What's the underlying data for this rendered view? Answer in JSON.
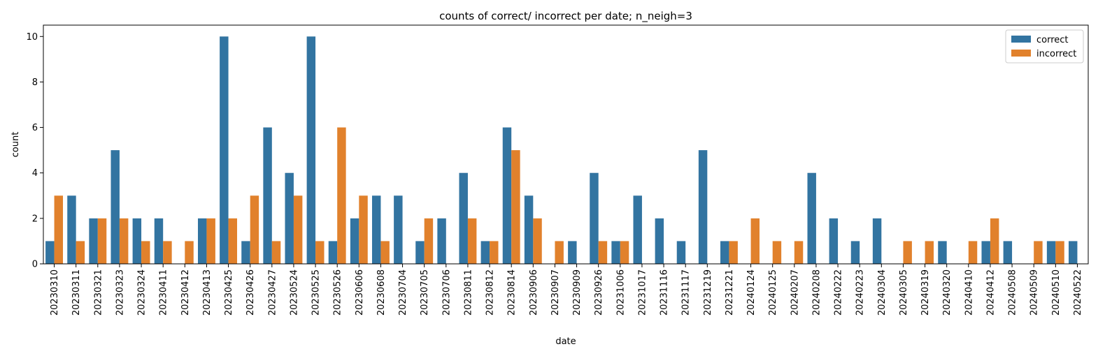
{
  "chart_data": {
    "type": "bar",
    "title": "counts of correct/ incorrect per date; n_neigh=3",
    "xlabel": "date",
    "ylabel": "count",
    "ylim": [
      0,
      10.5
    ],
    "yticks": [
      0,
      2,
      4,
      6,
      8,
      10
    ],
    "grid": false,
    "legend_position": "top-right",
    "categories": [
      "20230310",
      "20230311",
      "20230321",
      "20230323",
      "20230324",
      "20230411",
      "20230412",
      "20230413",
      "20230425",
      "20230426",
      "20230427",
      "20230524",
      "20230525",
      "20230526",
      "20230606",
      "20230608",
      "20230704",
      "20230705",
      "20230706",
      "20230811",
      "20230812",
      "20230814",
      "20230906",
      "20230907",
      "20230909",
      "20230926",
      "20231006",
      "20231017",
      "20231116",
      "20231117",
      "20231219",
      "20231221",
      "20240124",
      "20240125",
      "20240207",
      "20240208",
      "20240222",
      "20240223",
      "20240304",
      "20240305",
      "20240319",
      "20240320",
      "20240410",
      "20240412",
      "20240508",
      "20240509",
      "20240510",
      "20240522"
    ],
    "series": [
      {
        "name": "correct",
        "color": "#3274a1",
        "values": [
          1,
          3,
          2,
          5,
          2,
          2,
          0,
          2,
          10,
          1,
          6,
          4,
          10,
          1,
          2,
          3,
          3,
          1,
          2,
          4,
          1,
          6,
          3,
          0,
          1,
          4,
          1,
          3,
          2,
          1,
          5,
          1,
          0,
          0,
          0,
          4,
          2,
          1,
          2,
          0,
          0,
          1,
          0,
          1,
          1,
          0,
          1,
          1
        ]
      },
      {
        "name": "incorrect",
        "color": "#e1812c",
        "values": [
          3,
          1,
          2,
          2,
          1,
          1,
          1,
          2,
          2,
          3,
          1,
          3,
          1,
          6,
          3,
          1,
          0,
          2,
          0,
          2,
          1,
          5,
          2,
          1,
          0,
          1,
          1,
          0,
          0,
          0,
          0,
          1,
          2,
          1,
          1,
          0,
          0,
          0,
          0,
          1,
          1,
          0,
          1,
          2,
          0,
          1,
          1,
          0
        ]
      }
    ]
  }
}
